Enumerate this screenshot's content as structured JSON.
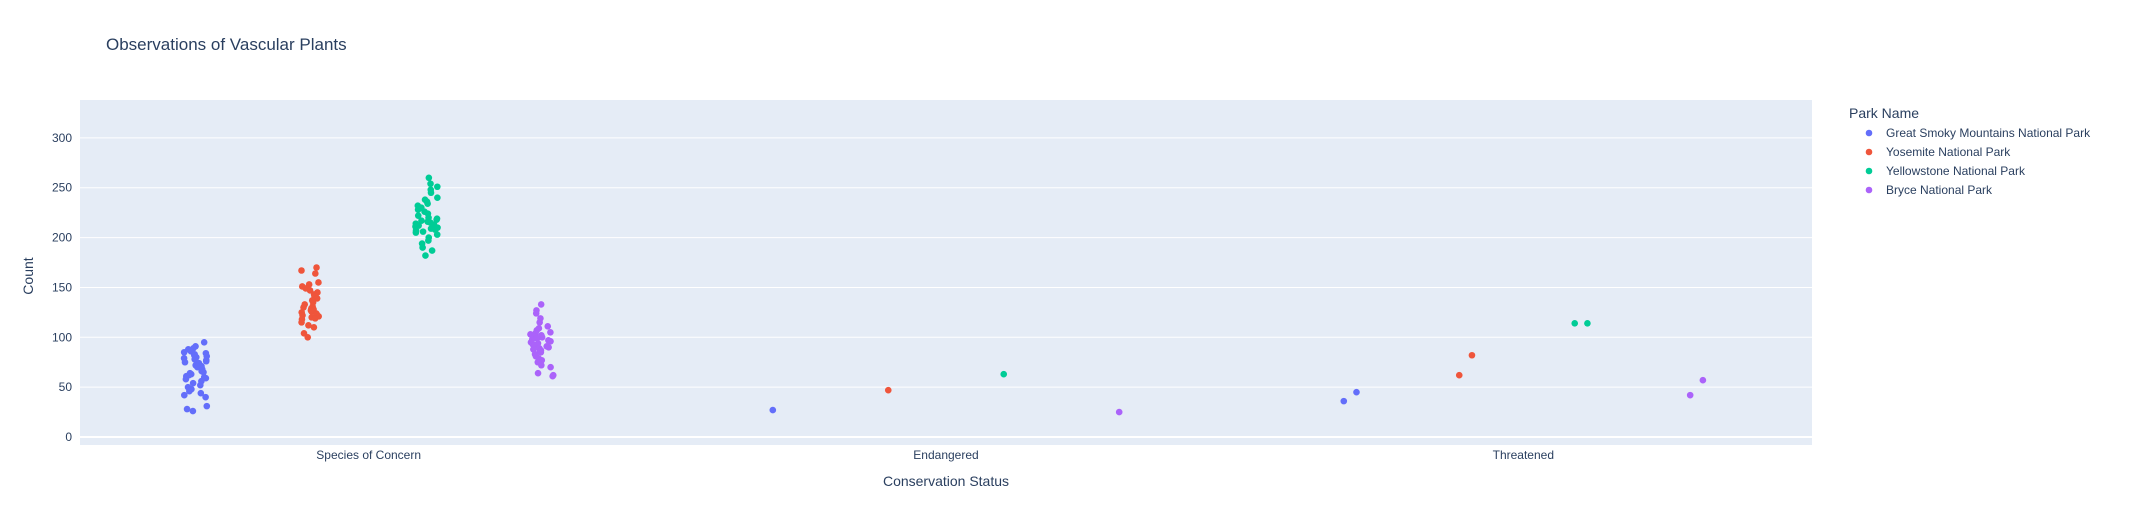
{
  "chart_data": {
    "type": "scatter",
    "title": "Observations of Vascular Plants",
    "xlabel": "Conservation Status",
    "ylabel": "Count",
    "categories": [
      "Species of Concern",
      "Endangered",
      "Threatened"
    ],
    "ylim": [
      -8,
      338
    ],
    "yticks": [
      0,
      50,
      100,
      150,
      200,
      250,
      300
    ],
    "grid": true,
    "legend": {
      "title": "Park Name",
      "placement": "right"
    },
    "series": [
      {
        "name": "Great Smoky Mountains National Park",
        "color": "#636efa",
        "points": [
          {
            "x": "Species of Concern",
            "y": [
              95,
              91,
              89,
              88,
              87,
              86,
              85,
              84,
              83,
              82,
              81,
              80,
              79,
              78,
              77,
              76,
              75,
              74,
              73,
              72,
              71,
              70,
              68,
              66,
              65,
              64,
              63,
              62,
              61,
              60,
              59,
              58,
              56,
              54,
              52,
              50,
              48,
              46,
              44,
              42,
              40,
              31,
              28,
              26
            ]
          },
          {
            "x": "Endangered",
            "y": [
              27
            ]
          },
          {
            "x": "Threatened",
            "y": [
              36,
              45
            ]
          }
        ]
      },
      {
        "name": "Yosemite National Park",
        "color": "#ef553b",
        "points": [
          {
            "x": "Species of Concern",
            "y": [
              170,
              167,
              164,
              155,
              153,
              151,
              149,
              147,
              145,
              143,
              141,
              139,
              137,
              135,
              133,
              131,
              130,
              129,
              128,
              127,
              126,
              125,
              124,
              123,
              122,
              121,
              120,
              119,
              118,
              115,
              112,
              110,
              104,
              100
            ]
          },
          {
            "x": "Endangered",
            "y": [
              47
            ]
          },
          {
            "x": "Threatened",
            "y": [
              62,
              82
            ]
          }
        ]
      },
      {
        "name": "Yellowstone National Park",
        "color": "#00cc96",
        "points": [
          {
            "x": "Species of Concern",
            "y": [
              260,
              254,
              251,
              248,
              245,
              240,
              238,
              236,
              234,
              232,
              230,
              228,
              226,
              224,
              222,
              220,
              219,
              218,
              217,
              216,
              215,
              214,
              213,
              212,
              211,
              210,
              209,
              208,
              207,
              206,
              205,
              203,
              200,
              197,
              194,
              190,
              187,
              182
            ]
          },
          {
            "x": "Endangered",
            "y": [
              63
            ]
          },
          {
            "x": "Threatened",
            "y": [
              114,
              114
            ]
          }
        ]
      },
      {
        "name": "Bryce National Park",
        "color": "#ab63fa",
        "points": [
          {
            "x": "Species of Concern",
            "y": [
              133,
              127,
              124,
              119,
              115,
              111,
              109,
              107,
              105,
              104,
              103,
              102,
              101,
              100,
              99,
              98,
              97,
              96,
              95,
              94,
              93,
              92,
              91,
              90,
              89,
              88,
              87,
              86,
              85,
              83,
              81,
              79,
              77,
              75,
              72,
              70,
              64,
              62,
              61
            ]
          },
          {
            "x": "Endangered",
            "y": [
              25
            ]
          },
          {
            "x": "Threatened",
            "y": [
              42,
              57
            ]
          }
        ]
      }
    ]
  }
}
